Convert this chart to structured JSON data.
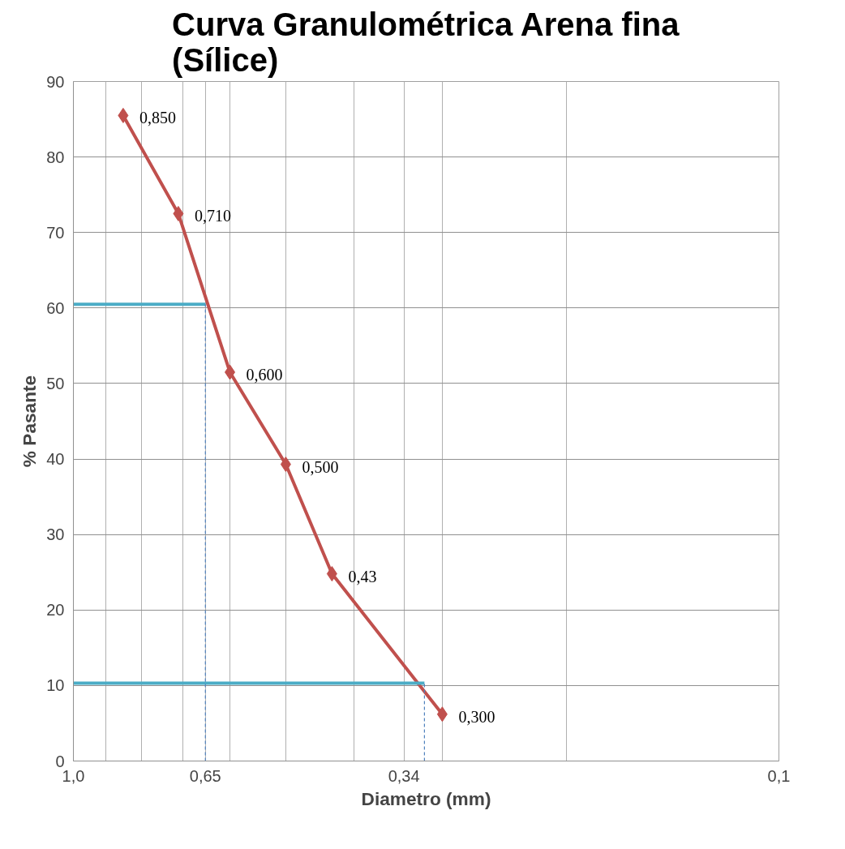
{
  "chart_data": {
    "type": "line",
    "title": "Curva Granulométrica Arena fina\n(Sílice)",
    "xlabel": "Diametro (mm)",
    "ylabel": "% Pasante",
    "log": "x",
    "xlim": [
      1.0,
      0.1
    ],
    "ylim": [
      0,
      90
    ],
    "xticks": [
      {
        "value": 1.0,
        "label": "1,0"
      },
      {
        "value": 0.9,
        "label": null
      },
      {
        "value": 0.8,
        "label": null
      },
      {
        "value": 0.7,
        "label": null
      },
      {
        "value": 0.65,
        "label": "0,65"
      },
      {
        "value": 0.6,
        "label": null
      },
      {
        "value": 0.5,
        "label": null
      },
      {
        "value": 0.4,
        "label": null
      },
      {
        "value": 0.34,
        "label": "0,34"
      },
      {
        "value": 0.3,
        "label": null
      },
      {
        "value": 0.2,
        "label": null
      },
      {
        "value": 0.1,
        "label": "0,1"
      }
    ],
    "yticks": [
      0,
      10,
      20,
      30,
      40,
      50,
      60,
      70,
      80,
      90
    ],
    "grid": true,
    "annotations": [
      {
        "text": "0,850",
        "x": 0.85,
        "y": 85.5
      },
      {
        "text": "0,710",
        "x": 0.71,
        "y": 72.5
      },
      {
        "text": "0,600",
        "x": 0.6,
        "y": 51.5
      },
      {
        "text": "0,500",
        "x": 0.5,
        "y": 39.3
      },
      {
        "text": "0,43",
        "x": 0.43,
        "y": 24.8
      },
      {
        "text": "0,300",
        "x": 0.3,
        "y": 6.2
      }
    ],
    "series": [
      {
        "x": [
          0.85,
          0.71,
          0.6,
          0.5,
          0.43,
          0.3
        ],
        "values": [
          85.5,
          72.5,
          51.5,
          39.3,
          24.8,
          6.2
        ],
        "color": "#c0504d",
        "marker": "diamond",
        "line_style": "solid"
      },
      {
        "x": [
          1.0,
          0.65
        ],
        "values": [
          60.5,
          60.5
        ],
        "color": "#4bacc6",
        "marker": "none",
        "line_style": "solid"
      },
      {
        "x": [
          1.0,
          0.318
        ],
        "values": [
          10.3,
          10.3
        ],
        "color": "#4bacc6",
        "marker": "none",
        "line_style": "solid"
      },
      {
        "x": [
          0.65,
          0.65
        ],
        "values": [
          0,
          60.5
        ],
        "color": "#4f81bd",
        "marker": "none",
        "line_style": "dashed"
      },
      {
        "x": [
          0.318,
          0.318
        ],
        "values": [
          0,
          10.3
        ],
        "color": "#4f81bd",
        "marker": "none",
        "line_style": "dashed"
      }
    ]
  }
}
